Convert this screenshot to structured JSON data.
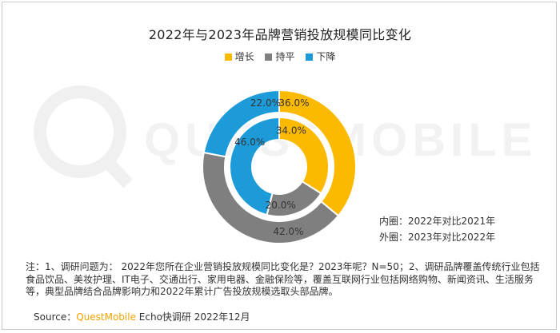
{
  "title": "2022年与2023年品牌营销投放规模同比变化",
  "legend": [
    {
      "label": "增长",
      "color": "#FBB900"
    },
    {
      "label": "持平",
      "color": "#7F7F7F"
    },
    {
      "label": "下降",
      "color": "#1D9BD9"
    }
  ],
  "chart_data": {
    "type": "pie",
    "subtype": "doughnut",
    "categories": [
      "增长",
      "持平",
      "下降"
    ],
    "series": [
      {
        "ring": "outer",
        "values": [
          36.0,
          42.0,
          22.0
        ],
        "labels": [
          "36.0%",
          "42.0%",
          "22.0%"
        ]
      },
      {
        "ring": "inner",
        "values": [
          34.0,
          20.0,
          46.0
        ],
        "labels": [
          "34.0%",
          "20.0%",
          "46.0%"
        ]
      }
    ],
    "colors": [
      "#FBB900",
      "#7F7F7F",
      "#1D9BD9"
    ],
    "legend_position": "top"
  },
  "annotations": {
    "inner": "内圈：2022年对比2021年",
    "outer": "外圈：2023年对比2022年"
  },
  "note": "注：1、调研问题为： 2022年您所在企业营销投放规模同比变化是？2023年呢？N=50；2、调研品牌覆盖传统行业包括食品饮品、美妆护理、IT电子、交通出行、家用电器、金融保险等，覆盖互联网行业包括网络购物、新闻资讯、生活服务等，典型品牌结合品牌影响力和2022年累计广告投放规模选取头部品牌。",
  "source": {
    "prefix": "Source：",
    "brand": "QuestMobile",
    "suffix": " Echo快调研 2022年12月"
  },
  "watermark": "QUESTMOBILE"
}
